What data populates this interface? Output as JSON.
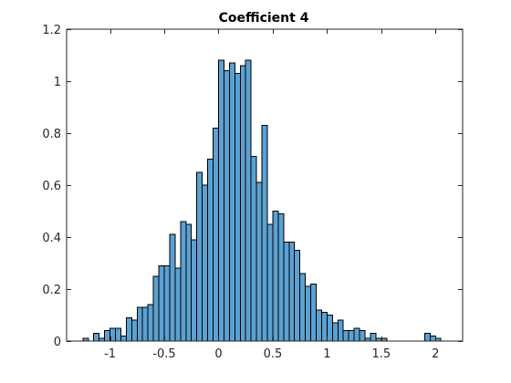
{
  "chart_data": {
    "type": "bar",
    "title": "Coefficient 4",
    "xlabel": "",
    "ylabel": "",
    "xlim": [
      -1.4,
      2.25
    ],
    "ylim": [
      0,
      1.2
    ],
    "bin_width": 0.05,
    "xticks": [
      -1,
      -0.5,
      0,
      0.5,
      1,
      1.5,
      2
    ],
    "xtick_labels": [
      "-1",
      "-0.5",
      "0",
      "0.5",
      "1",
      "1.5",
      "2"
    ],
    "yticks": [
      0,
      0.2,
      0.4,
      0.6,
      0.8,
      1,
      1.2
    ],
    "ytick_labels": [
      "0",
      "0.2",
      "0.4",
      "0.6",
      "0.8",
      "1",
      "1.2"
    ],
    "grid": false,
    "legend": "none",
    "bar_color": "#5ba1d2",
    "bar_edge_color": "#000000",
    "bin_left_edges": [
      -1.25,
      -1.2,
      -1.15,
      -1.1,
      -1.05,
      -1.0,
      -0.95,
      -0.9,
      -0.85,
      -0.8,
      -0.75,
      -0.7,
      -0.65,
      -0.6,
      -0.55,
      -0.5,
      -0.45,
      -0.4,
      -0.35,
      -0.3,
      -0.25,
      -0.2,
      -0.15,
      -0.1,
      -0.05,
      0.0,
      0.05,
      0.1,
      0.15,
      0.2,
      0.25,
      0.3,
      0.35,
      0.4,
      0.45,
      0.5,
      0.55,
      0.6,
      0.65,
      0.7,
      0.75,
      0.8,
      0.85,
      0.9,
      0.95,
      1.0,
      1.05,
      1.1,
      1.15,
      1.2,
      1.25,
      1.3,
      1.35,
      1.4,
      1.45,
      1.5,
      1.55,
      1.6,
      1.65,
      1.7,
      1.75,
      1.8,
      1.85,
      1.9,
      1.95,
      2.0,
      2.05
    ],
    "values": [
      0.01,
      0.0,
      0.03,
      0.01,
      0.04,
      0.05,
      0.05,
      0.02,
      0.09,
      0.08,
      0.13,
      0.13,
      0.14,
      0.25,
      0.29,
      0.29,
      0.41,
      0.28,
      0.46,
      0.45,
      0.39,
      0.65,
      0.6,
      0.7,
      0.82,
      1.08,
      1.04,
      1.07,
      1.03,
      1.06,
      1.08,
      0.71,
      0.61,
      0.83,
      0.45,
      0.5,
      0.49,
      0.38,
      0.38,
      0.35,
      0.26,
      0.21,
      0.22,
      0.12,
      0.11,
      0.1,
      0.07,
      0.08,
      0.04,
      0.04,
      0.05,
      0.04,
      0.01,
      0.03,
      0.01,
      0.01,
      0.0,
      0.0,
      0.0,
      0.0,
      0.0,
      0.0,
      0.0,
      0.03,
      0.02,
      0.01,
      0.0
    ]
  }
}
